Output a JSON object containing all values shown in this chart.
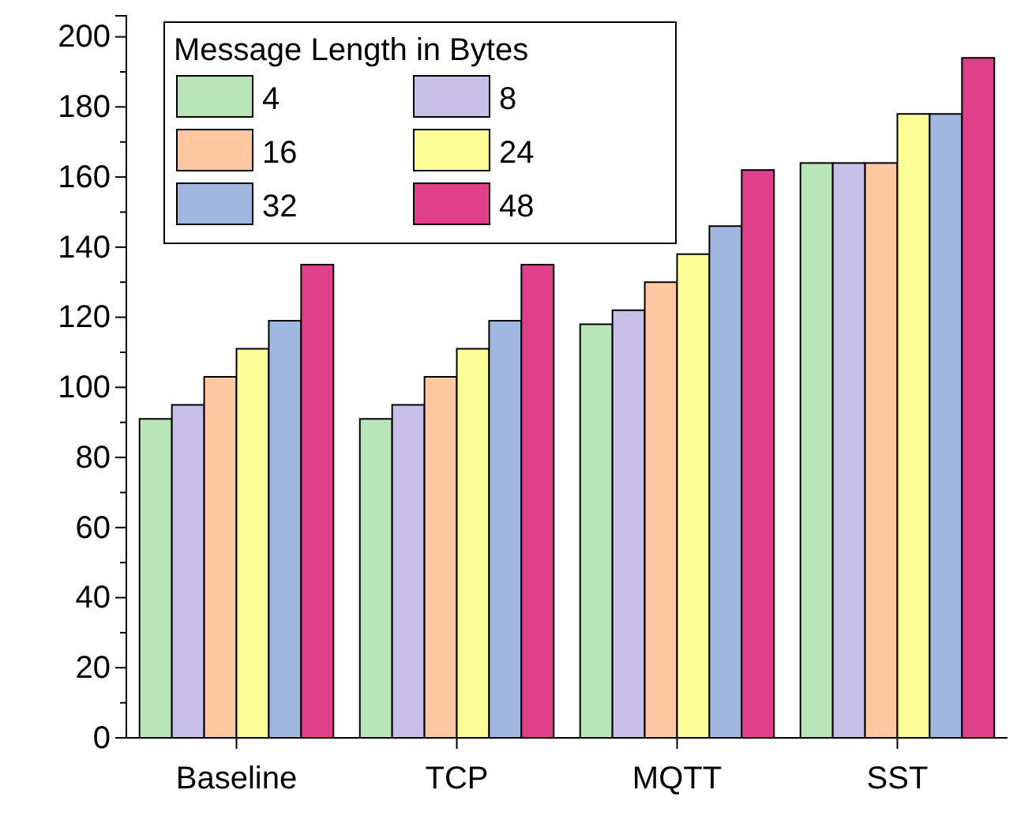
{
  "chart_data": {
    "type": "bar",
    "legend_title": "Message Length in Bytes",
    "categories": [
      "Baseline",
      "TCP",
      "MQTT",
      "SST"
    ],
    "series": [
      {
        "name": "4",
        "color": "#b8e6b8",
        "values": [
          91,
          91,
          118,
          164
        ]
      },
      {
        "name": "8",
        "color": "#c8c0e8",
        "values": [
          95,
          95,
          122,
          164
        ]
      },
      {
        "name": "16",
        "color": "#ffc8a0",
        "values": [
          103,
          103,
          130,
          164
        ]
      },
      {
        "name": "24",
        "color": "#ffff99",
        "values": [
          111,
          111,
          138,
          178
        ]
      },
      {
        "name": "32",
        "color": "#a0b8e0",
        "values": [
          119,
          119,
          146,
          178
        ]
      },
      {
        "name": "48",
        "color": "#e0408a",
        "values": [
          135,
          135,
          162,
          194
        ]
      }
    ],
    "ylim": [
      0,
      206
    ],
    "yticks": [
      0,
      20,
      40,
      60,
      80,
      100,
      120,
      140,
      160,
      180,
      200
    ],
    "legend": "top left",
    "grid": false
  }
}
